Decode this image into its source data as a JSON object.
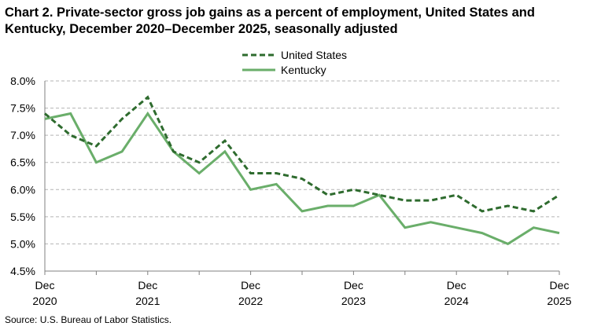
{
  "title": "Chart 2. Private-sector gross job gains as a percent of employment, United States and Kentucky, December 2020–December 2025, seasonally adjusted",
  "source": "Source: U.S. Bureau of Labor Statistics.",
  "chart_data": {
    "type": "line",
    "title": "Chart 2. Private-sector gross job gains as a percent of employment, United States and Kentucky, December 2020–December 2025, seasonally adjusted",
    "x": [
      "Dec 2020",
      "Mar 2021",
      "Jun 2021",
      "Sep 2021",
      "Dec 2021",
      "Mar 2022",
      "Jun 2022",
      "Sep 2022",
      "Dec 2022",
      "Mar 2023",
      "Jun 2023",
      "Sep 2023",
      "Dec 2023",
      "Mar 2024",
      "Jun 2024",
      "Sep 2024",
      "Dec 2024",
      "Mar 2025",
      "Jun 2025",
      "Sep 2025",
      "Dec 2025"
    ],
    "x_tick_labels": [
      {
        "line1": "Dec",
        "line2": "2020",
        "index": 0
      },
      {
        "line1": "Dec",
        "line2": "2021",
        "index": 4
      },
      {
        "line1": "Dec",
        "line2": "2022",
        "index": 8
      },
      {
        "line1": "Dec",
        "line2": "2023",
        "index": 12
      },
      {
        "line1": "Dec",
        "line2": "2024",
        "index": 16
      },
      {
        "line1": "Dec",
        "line2": "2025",
        "index": 20
      }
    ],
    "y_ticks": [
      "4.5%",
      "5.0%",
      "5.5%",
      "6.0%",
      "6.5%",
      "7.0%",
      "7.5%",
      "8.0%"
    ],
    "ylim": [
      4.5,
      8.0
    ],
    "grid": "horizontal dashed",
    "legend_position": "top-center",
    "series": [
      {
        "name": "United States",
        "style": "dashed",
        "color": "#2E6B2E",
        "values": [
          7.4,
          7.0,
          6.8,
          7.3,
          7.7,
          6.7,
          6.5,
          6.9,
          6.3,
          6.3,
          6.2,
          5.9,
          6.0,
          5.9,
          5.8,
          5.8,
          5.9,
          5.6,
          5.7,
          5.6,
          5.9
        ]
      },
      {
        "name": "Kentucky",
        "style": "solid",
        "color": "#6AAE6A",
        "values": [
          7.3,
          7.4,
          6.5,
          6.7,
          7.4,
          6.7,
          6.3,
          6.7,
          6.0,
          6.1,
          5.6,
          5.7,
          5.7,
          5.9,
          5.3,
          5.4,
          5.3,
          5.2,
          5.0,
          5.3,
          5.2
        ]
      }
    ]
  }
}
